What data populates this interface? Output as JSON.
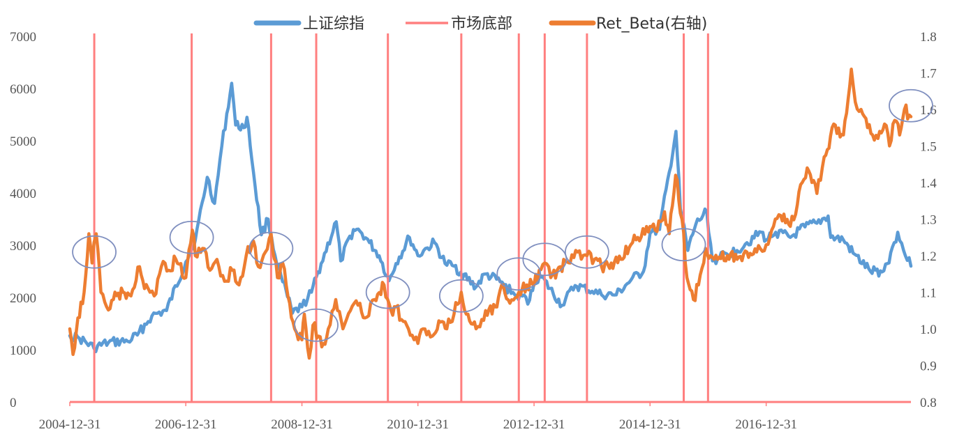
{
  "chart_data": {
    "type": "line",
    "legend_position": "top",
    "grid": false,
    "x_range": [
      "2004-12-31",
      "2019-06-30"
    ],
    "y_left_range": [
      0,
      7000
    ],
    "y_right_range": [
      0.8,
      1.8
    ],
    "x_tick_labels": [
      "2004-12-31",
      "2006-12-31",
      "2008-12-31",
      "2010-12-31",
      "2012-12-31",
      "2014-12-31",
      "2016-12-31"
    ],
    "y_left_tick_labels": [
      "0",
      "1000",
      "2000",
      "3000",
      "4000",
      "5000",
      "6000",
      "7000"
    ],
    "y_right_tick_labels": [
      "0.8",
      "0.9",
      "1.0",
      "1.1",
      "1.2",
      "1.3",
      "1.4",
      "1.5",
      "1.6",
      "1.7",
      "1.8"
    ],
    "series": [
      {
        "name": "上证综指",
        "axis": "left",
        "color": "#5B9BD5",
        "points": [
          [
            "2004-12-31",
            1270
          ],
          [
            "2005-03-01",
            1220
          ],
          [
            "2005-06-01",
            1030
          ],
          [
            "2005-09-01",
            1140
          ],
          [
            "2005-12-31",
            1160
          ],
          [
            "2006-03-01",
            1280
          ],
          [
            "2006-06-01",
            1650
          ],
          [
            "2006-09-01",
            1750
          ],
          [
            "2006-12-31",
            2680
          ],
          [
            "2007-03-01",
            3100
          ],
          [
            "2007-05-15",
            4300
          ],
          [
            "2007-06-30",
            3800
          ],
          [
            "2007-08-15",
            4900
          ],
          [
            "2007-10-16",
            6100
          ],
          [
            "2007-11-10",
            5300
          ],
          [
            "2007-12-31",
            5250
          ],
          [
            "2008-01-20",
            5450
          ],
          [
            "2008-03-01",
            4400
          ],
          [
            "2008-04-20",
            3200
          ],
          [
            "2008-06-01",
            3500
          ],
          [
            "2008-07-15",
            2800
          ],
          [
            "2008-09-01",
            2300
          ],
          [
            "2008-11-01",
            1700
          ],
          [
            "2008-12-31",
            1820
          ],
          [
            "2009-03-01",
            2100
          ],
          [
            "2009-05-01",
            2650
          ],
          [
            "2009-08-04",
            3450
          ],
          [
            "2009-09-01",
            2700
          ],
          [
            "2009-11-20",
            3300
          ],
          [
            "2009-12-31",
            3270
          ],
          [
            "2010-03-01",
            3050
          ],
          [
            "2010-05-01",
            2800
          ],
          [
            "2010-07-02",
            2320
          ],
          [
            "2010-08-15",
            2650
          ],
          [
            "2010-11-08",
            3150
          ],
          [
            "2010-12-31",
            2800
          ],
          [
            "2011-03-01",
            2950
          ],
          [
            "2011-04-15",
            3050
          ],
          [
            "2011-06-20",
            2650
          ],
          [
            "2011-08-15",
            2600
          ],
          [
            "2011-12-31",
            2200
          ],
          [
            "2012-03-01",
            2450
          ],
          [
            "2012-06-01",
            2300
          ],
          [
            "2012-09-01",
            2050
          ],
          [
            "2012-12-03",
            1950
          ],
          [
            "2012-12-31",
            2270
          ],
          [
            "2013-02-05",
            2430
          ],
          [
            "2013-06-25",
            1850
          ],
          [
            "2013-09-15",
            2230
          ],
          [
            "2013-12-31",
            2120
          ],
          [
            "2014-03-01",
            2050
          ],
          [
            "2014-06-01",
            2050
          ],
          [
            "2014-09-01",
            2330
          ],
          [
            "2014-11-20",
            2500
          ],
          [
            "2014-12-31",
            3230
          ],
          [
            "2015-03-01",
            3300
          ],
          [
            "2015-05-01",
            4400
          ],
          [
            "2015-06-12",
            5180
          ],
          [
            "2015-07-10",
            3700
          ],
          [
            "2015-08-26",
            2900
          ],
          [
            "2015-10-15",
            3400
          ],
          [
            "2015-12-23",
            3650
          ],
          [
            "2016-01-28",
            2700
          ],
          [
            "2016-03-01",
            2750
          ],
          [
            "2016-06-30",
            2900
          ],
          [
            "2016-09-01",
            3050
          ],
          [
            "2016-11-30",
            3250
          ],
          [
            "2016-12-31",
            3100
          ],
          [
            "2017-03-01",
            3250
          ],
          [
            "2017-06-01",
            3150
          ],
          [
            "2017-09-01",
            3350
          ],
          [
            "2017-11-15",
            3420
          ],
          [
            "2018-01-25",
            3560
          ],
          [
            "2018-02-10",
            3150
          ],
          [
            "2018-05-01",
            3100
          ],
          [
            "2018-07-01",
            2850
          ],
          [
            "2018-10-18",
            2500
          ],
          [
            "2018-12-31",
            2490
          ],
          [
            "2019-02-01",
            2650
          ],
          [
            "2019-04-08",
            3250
          ],
          [
            "2019-05-15",
            2900
          ],
          [
            "2019-06-30",
            2600
          ]
        ]
      },
      {
        "name": "市场底部",
        "axis": "left",
        "type": "vertical-lines",
        "color": "#FF7F7F",
        "dates": [
          "2005-06-03",
          "2007-02-06",
          "2008-06-20",
          "2009-03-31",
          "2010-06-25",
          "2011-09-30",
          "2012-09-26",
          "2013-03-08",
          "2013-11-29",
          "2015-07-31",
          "2015-12-31"
        ]
      },
      {
        "name": "Ret_Beta(右轴)",
        "axis": "right",
        "color": "#ED7D31",
        "points": [
          [
            "2004-12-31",
            1.0
          ],
          [
            "2005-01-20",
            0.93
          ],
          [
            "2005-02-20",
            1.03
          ],
          [
            "2005-03-31",
            1.1
          ],
          [
            "2005-04-30",
            1.26
          ],
          [
            "2005-05-20",
            1.18
          ],
          [
            "2005-06-15",
            1.26
          ],
          [
            "2005-07-15",
            1.1
          ],
          [
            "2005-08-20",
            1.06
          ],
          [
            "2005-10-01",
            1.08
          ],
          [
            "2005-12-01",
            1.1
          ],
          [
            "2006-01-20",
            1.09
          ],
          [
            "2006-03-15",
            1.17
          ],
          [
            "2006-04-15",
            1.11
          ],
          [
            "2006-05-20",
            1.1
          ],
          [
            "2006-06-15",
            1.09
          ],
          [
            "2006-07-30",
            1.17
          ],
          [
            "2006-09-15",
            1.16
          ],
          [
            "2006-10-30",
            1.19
          ],
          [
            "2006-12-31",
            1.14
          ],
          [
            "2007-02-10",
            1.27
          ],
          [
            "2007-03-01",
            1.2
          ],
          [
            "2007-04-15",
            1.22
          ],
          [
            "2007-06-01",
            1.16
          ],
          [
            "2007-07-15",
            1.19
          ],
          [
            "2007-09-01",
            1.13
          ],
          [
            "2007-10-20",
            1.16
          ],
          [
            "2007-12-01",
            1.12
          ],
          [
            "2008-01-15",
            1.2
          ],
          [
            "2008-03-01",
            1.24
          ],
          [
            "2008-04-01",
            1.17
          ],
          [
            "2008-05-15",
            1.21
          ],
          [
            "2008-06-20",
            1.26
          ],
          [
            "2008-07-30",
            1.14
          ],
          [
            "2008-09-01",
            1.18
          ],
          [
            "2008-10-15",
            1.07
          ],
          [
            "2008-11-15",
            1.0
          ],
          [
            "2008-12-31",
            0.97
          ],
          [
            "2009-01-15",
            1.04
          ],
          [
            "2009-02-15",
            0.92
          ],
          [
            "2009-03-10",
            1.01
          ],
          [
            "2009-04-15",
            0.98
          ],
          [
            "2009-05-15",
            0.96
          ],
          [
            "2009-06-15",
            1.0
          ],
          [
            "2009-08-01",
            1.08
          ],
          [
            "2009-09-15",
            1.0
          ],
          [
            "2009-11-01",
            1.05
          ],
          [
            "2009-12-31",
            1.07
          ],
          [
            "2010-02-01",
            1.03
          ],
          [
            "2010-04-01",
            1.08
          ],
          [
            "2010-06-01",
            1.12
          ],
          [
            "2010-07-15",
            1.05
          ],
          [
            "2010-08-15",
            1.06
          ],
          [
            "2010-10-01",
            1.02
          ],
          [
            "2010-11-01",
            1.0
          ],
          [
            "2010-12-31",
            0.96
          ],
          [
            "2011-02-01",
            1.0
          ],
          [
            "2011-04-01",
            0.98
          ],
          [
            "2011-06-01",
            1.02
          ],
          [
            "2011-07-01",
            1.0
          ],
          [
            "2011-08-15",
            1.04
          ],
          [
            "2011-09-30",
            1.1
          ],
          [
            "2011-11-01",
            1.04
          ],
          [
            "2012-01-01",
            1.0
          ],
          [
            "2012-03-01",
            1.05
          ],
          [
            "2012-05-01",
            1.06
          ],
          [
            "2012-06-20",
            1.12
          ],
          [
            "2012-08-01",
            1.07
          ],
          [
            "2012-09-26",
            1.1
          ],
          [
            "2012-11-15",
            1.12
          ],
          [
            "2012-12-31",
            1.12
          ],
          [
            "2013-02-01",
            1.16
          ],
          [
            "2013-03-08",
            1.18
          ],
          [
            "2013-04-15",
            1.14
          ],
          [
            "2013-06-15",
            1.17
          ],
          [
            "2013-08-15",
            1.18
          ],
          [
            "2013-10-01",
            1.21
          ],
          [
            "2013-11-29",
            1.2
          ],
          [
            "2014-01-15",
            1.19
          ],
          [
            "2014-03-01",
            1.17
          ],
          [
            "2014-05-01",
            1.18
          ],
          [
            "2014-07-01",
            1.19
          ],
          [
            "2014-09-01",
            1.23
          ],
          [
            "2014-10-15",
            1.25
          ],
          [
            "2014-12-31",
            1.28
          ],
          [
            "2015-02-01",
            1.27
          ],
          [
            "2015-04-01",
            1.32
          ],
          [
            "2015-05-01",
            1.26
          ],
          [
            "2015-06-10",
            1.42
          ],
          [
            "2015-07-20",
            1.3
          ],
          [
            "2015-08-20",
            1.14
          ],
          [
            "2015-09-30",
            1.08
          ],
          [
            "2015-11-01",
            1.12
          ],
          [
            "2015-12-15",
            1.22
          ],
          [
            "2016-01-15",
            1.2
          ],
          [
            "2016-03-01",
            1.19
          ],
          [
            "2016-05-01",
            1.2
          ],
          [
            "2016-07-01",
            1.19
          ],
          [
            "2016-09-01",
            1.21
          ],
          [
            "2016-11-01",
            1.21
          ],
          [
            "2016-12-31",
            1.23
          ],
          [
            "2017-02-15",
            1.28
          ],
          [
            "2017-04-01",
            1.31
          ],
          [
            "2017-06-01",
            1.28
          ],
          [
            "2017-07-15",
            1.34
          ],
          [
            "2017-08-15",
            1.4
          ],
          [
            "2017-09-15",
            1.44
          ],
          [
            "2017-10-15",
            1.4
          ],
          [
            "2017-11-15",
            1.37
          ],
          [
            "2017-12-31",
            1.47
          ],
          [
            "2018-01-20",
            1.49
          ],
          [
            "2018-03-01",
            1.56
          ],
          [
            "2018-05-01",
            1.53
          ],
          [
            "2018-06-20",
            1.71
          ],
          [
            "2018-07-15",
            1.62
          ],
          [
            "2018-08-20",
            1.6
          ],
          [
            "2018-09-30",
            1.55
          ],
          [
            "2018-11-01",
            1.53
          ],
          [
            "2018-12-15",
            1.54
          ],
          [
            "2019-01-15",
            1.56
          ],
          [
            "2019-02-15",
            1.5
          ],
          [
            "2019-03-20",
            1.57
          ],
          [
            "2019-04-20",
            1.53
          ],
          [
            "2019-05-20",
            1.6
          ],
          [
            "2019-06-30",
            1.58
          ]
        ]
      }
    ],
    "annotations": {
      "type": "ellipse-highlights",
      "color": "#7F8FBF",
      "points": [
        [
          "2005-06-03",
          1.21
        ],
        [
          "2007-02-06",
          1.25
        ],
        [
          "2008-06-20",
          1.22
        ],
        [
          "2009-03-31",
          1.01
        ],
        [
          "2010-06-25",
          1.1
        ],
        [
          "2011-09-30",
          1.09
        ],
        [
          "2012-09-26",
          1.15
        ],
        [
          "2013-03-08",
          1.19
        ],
        [
          "2013-11-29",
          1.21
        ],
        [
          "2015-07-31",
          1.23
        ],
        [
          "2019-06-30",
          1.61
        ]
      ]
    }
  }
}
